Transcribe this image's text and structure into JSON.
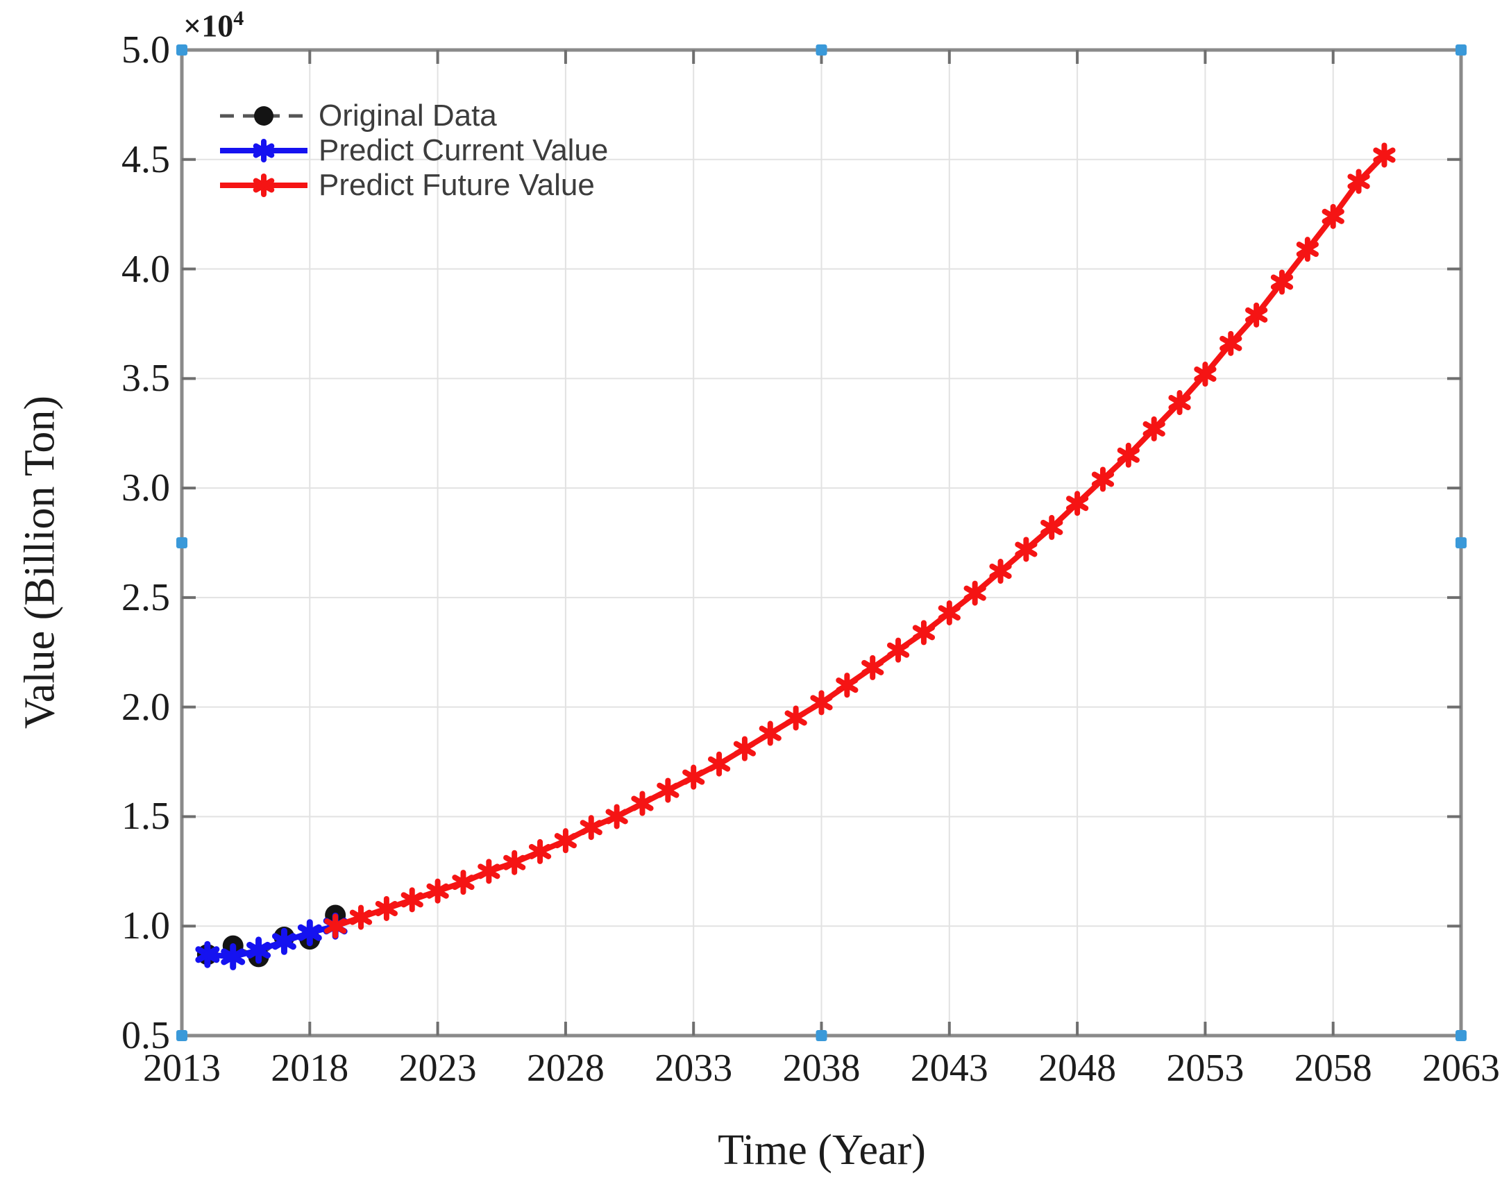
{
  "chart_data": {
    "type": "line",
    "title": "",
    "xlabel": "Time (Year)",
    "ylabel": "Value (Billion Ton)",
    "y_offset": {
      "base": "×10",
      "exponent": "4"
    },
    "units_note": "y values are in units of 10^4 Billion Ton",
    "xlim": [
      2013,
      2063
    ],
    "ylim": [
      0.5,
      5.0
    ],
    "grid": true,
    "legend_position": "top-left-inside",
    "x_tick_values": [
      2013,
      2018,
      2023,
      2028,
      2033,
      2038,
      2043,
      2048,
      2053,
      2058,
      2063
    ],
    "x_tick_labels": [
      "2013",
      "2018",
      "2023",
      "2028",
      "2033",
      "2038",
      "2043",
      "2048",
      "2053",
      "2058",
      "2063"
    ],
    "y_tick_values": [
      0.5,
      1.0,
      1.5,
      2.0,
      2.5,
      3.0,
      3.5,
      4.0,
      4.5,
      5.0
    ],
    "y_tick_labels": [
      "0.5",
      "1.0",
      "1.5",
      "2.0",
      "2.5",
      "3.0",
      "3.5",
      "4.0",
      "4.5",
      "5.0"
    ],
    "series": [
      {
        "name": "Original Data",
        "color": "#141414",
        "line_color": "#555555",
        "line_style": "dashed",
        "marker": "circle",
        "x": [
          2014,
          2015,
          2016,
          2017,
          2018,
          2019
        ],
        "y": [
          0.87,
          0.91,
          0.86,
          0.95,
          0.94,
          1.05
        ]
      },
      {
        "name": "Predict Current Value",
        "color": "#1512f0",
        "line_color": "#1512f0",
        "line_style": "solid",
        "marker": "asterisk",
        "x": [
          2014,
          2015,
          2016,
          2017,
          2018,
          2019
        ],
        "y": [
          0.87,
          0.86,
          0.89,
          0.93,
          0.97,
          1.0
        ]
      },
      {
        "name": "Predict Future Value",
        "color": "#f51414",
        "line_color": "#f51414",
        "line_style": "solid",
        "marker": "asterisk",
        "x": [
          2019,
          2020,
          2021,
          2022,
          2023,
          2024,
          2025,
          2026,
          2027,
          2028,
          2029,
          2030,
          2031,
          2032,
          2033,
          2034,
          2035,
          2036,
          2037,
          2038,
          2039,
          2040,
          2041,
          2042,
          2043,
          2044,
          2045,
          2046,
          2047,
          2048,
          2049,
          2050,
          2051,
          2052,
          2053,
          2054,
          2055,
          2056,
          2057,
          2058,
          2059,
          2060
        ],
        "y": [
          1.0,
          1.04,
          1.08,
          1.12,
          1.16,
          1.2,
          1.25,
          1.29,
          1.34,
          1.39,
          1.45,
          1.5,
          1.56,
          1.62,
          1.68,
          1.74,
          1.81,
          1.88,
          1.95,
          2.02,
          2.1,
          2.18,
          2.26,
          2.34,
          2.43,
          2.52,
          2.62,
          2.72,
          2.82,
          2.93,
          3.04,
          3.15,
          3.27,
          3.39,
          3.52,
          3.66,
          3.79,
          3.94,
          4.09,
          4.24,
          4.4,
          4.52
        ]
      }
    ],
    "style": {
      "grid_color": "#e2e2e2",
      "spine_color": "#8a8a8a",
      "tick_color": "#6f6f6f",
      "handle_color": "#3a99d9",
      "tick_text_color": "#1c1c1c",
      "legend_text_color": "#3c3c3c"
    }
  }
}
